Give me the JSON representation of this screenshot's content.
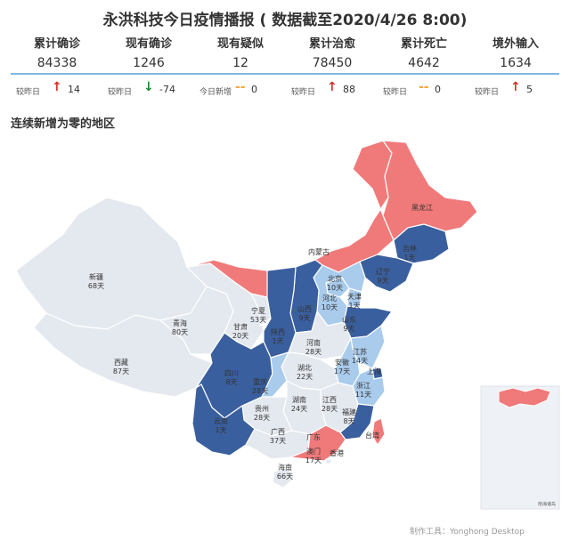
{
  "header": {
    "title": "永洪科技今日疫情播报 ( 数据截至2020/4/26 8:00)"
  },
  "stats": [
    {
      "label": "累计确诊",
      "value": "84338",
      "delta_label": "较昨日",
      "arrow": "↑",
      "arrow_color": "#d73027",
      "delta": "14"
    },
    {
      "label": "现有确诊",
      "value": "1246",
      "delta_label": "较昨日",
      "arrow": "↓",
      "arrow_color": "#1a8a2e",
      "delta": "-74"
    },
    {
      "label": "现有疑似",
      "value": "12",
      "delta_label": "今日新增",
      "arrow": "--",
      "arrow_color": "#f2a93b",
      "delta": "0"
    },
    {
      "label": "累计治愈",
      "value": "78450",
      "delta_label": "较昨日",
      "arrow": "↑",
      "arrow_color": "#d73027",
      "delta": "88"
    },
    {
      "label": "累计死亡",
      "value": "4642",
      "delta_label": "较昨日",
      "arrow": "--",
      "arrow_color": "#f2a93b",
      "delta": "0"
    },
    {
      "label": "境外输入",
      "value": "1634",
      "delta_label": "较昨日",
      "arrow": "↑",
      "arrow_color": "#d73027",
      "delta": "5"
    }
  ],
  "map": {
    "section_title": "连续新增为零的地区",
    "colors": {
      "red": "#f07a7a",
      "dark": "#3a5f9e",
      "light": "#a9cbec",
      "grey": "#e4e9ef",
      "border": "#ffffff"
    },
    "provinces": [
      {
        "name": "新疆",
        "days": "68天",
        "category": "grey"
      },
      {
        "name": "西藏",
        "days": "87天",
        "category": "grey"
      },
      {
        "name": "青海",
        "days": "80天",
        "category": "grey"
      },
      {
        "name": "甘肃",
        "days": "20天",
        "category": "grey"
      },
      {
        "name": "宁夏",
        "days": "53天",
        "category": "grey"
      },
      {
        "name": "内蒙古",
        "days": "",
        "category": "red"
      },
      {
        "name": "黑龙江",
        "days": "",
        "category": "red"
      },
      {
        "name": "吉林",
        "days": "1天",
        "category": "dark"
      },
      {
        "name": "辽宁",
        "days": "9天",
        "category": "dark"
      },
      {
        "name": "北京",
        "days": "10天",
        "category": "light"
      },
      {
        "name": "天津",
        "days": "1天",
        "category": "light"
      },
      {
        "name": "河北",
        "days": "10天",
        "category": "light"
      },
      {
        "name": "山西",
        "days": "9天",
        "category": "dark"
      },
      {
        "name": "陕西",
        "days": "1天",
        "category": "dark"
      },
      {
        "name": "山东",
        "days": "9天",
        "category": "dark"
      },
      {
        "name": "河南",
        "days": "28天",
        "category": "grey"
      },
      {
        "name": "江苏",
        "days": "14天",
        "category": "light"
      },
      {
        "name": "安徽",
        "days": "17天",
        "category": "light"
      },
      {
        "name": "上海",
        "days": "",
        "category": "dark"
      },
      {
        "name": "湖北",
        "days": "22天",
        "category": "grey"
      },
      {
        "name": "四川",
        "days": "8天",
        "category": "dark"
      },
      {
        "name": "重庆",
        "days": "28天",
        "category": "light"
      },
      {
        "name": "浙江",
        "days": "11天",
        "category": "light"
      },
      {
        "name": "湖南",
        "days": "24天",
        "category": "grey"
      },
      {
        "name": "江西",
        "days": "28天",
        "category": "grey"
      },
      {
        "name": "福建",
        "days": "8天",
        "category": "dark"
      },
      {
        "name": "贵州",
        "days": "28天",
        "category": "grey"
      },
      {
        "name": "云南",
        "days": "1天",
        "category": "dark"
      },
      {
        "name": "广西",
        "days": "37天",
        "category": "grey"
      },
      {
        "name": "广东",
        "days": "",
        "category": "red"
      },
      {
        "name": "台湾",
        "days": "",
        "category": "red"
      },
      {
        "name": "香港",
        "days": "",
        "category": "grey"
      },
      {
        "name": "澳门",
        "days": "17天",
        "category": "grey"
      },
      {
        "name": "海南",
        "days": "66天",
        "category": "grey"
      }
    ],
    "inset_note": "南海诸岛"
  },
  "footer": {
    "tool": "制作工具：Yonghong Desktop"
  }
}
